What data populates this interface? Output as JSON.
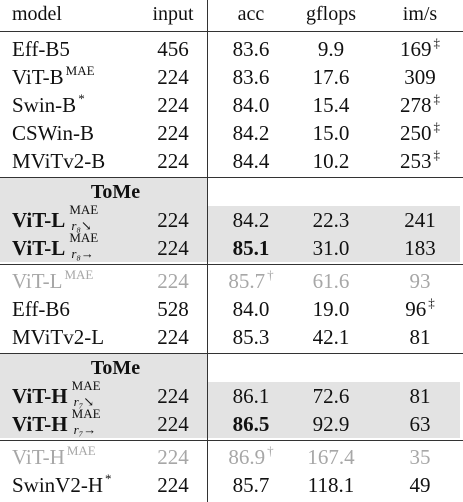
{
  "headers": {
    "model": "model",
    "input": "input",
    "acc": "acc",
    "gflops": "gflops",
    "ims": "im/s"
  },
  "section_label": "ToMe",
  "group1": [
    {
      "model": "Eff-B5",
      "input": "456",
      "acc": "83.6",
      "gflops": "9.9",
      "ims": "169",
      "ims_sup": "‡"
    },
    {
      "model": "ViT-B",
      "model_sup": "MAE",
      "input": "224",
      "acc": "83.6",
      "gflops": "17.6",
      "ims": "309"
    },
    {
      "model": "Swin-B",
      "model_sup": "*",
      "input": "224",
      "acc": "84.0",
      "gflops": "15.4",
      "ims": "278",
      "ims_sup": "‡"
    },
    {
      "model": "CSWin-B",
      "input": "224",
      "acc": "84.2",
      "gflops": "15.0",
      "ims": "250",
      "ims_sup": "‡"
    },
    {
      "model": "MViTv2-B",
      "input": "224",
      "acc": "84.4",
      "gflops": "10.2",
      "ims": "253",
      "ims_sup": "‡"
    }
  ],
  "tome1": [
    {
      "model": "ViT-L",
      "sup_top": "MAE",
      "sup_bot": "r₈↘",
      "input": "224",
      "acc": "84.2",
      "gflops": "22.3",
      "ims": "241"
    },
    {
      "model": "ViT-L",
      "sup_top": "MAE",
      "sup_bot": "r₈→",
      "input": "224",
      "acc": "85.1",
      "gflops": "31.0",
      "ims": "183"
    }
  ],
  "group2": [
    {
      "model": "ViT-L",
      "model_sup": "MAE",
      "input": "224",
      "acc": "85.7",
      "acc_sup": "†",
      "gflops": "61.6",
      "ims": "93"
    },
    {
      "model": "Eff-B6",
      "input": "528",
      "acc": "84.0",
      "gflops": "19.0",
      "ims": "96",
      "ims_sup": "‡"
    },
    {
      "model": "MViTv2-L",
      "input": "224",
      "acc": "85.3",
      "gflops": "42.1",
      "ims": "81"
    }
  ],
  "tome2": [
    {
      "model": "ViT-H",
      "sup_top": "MAE",
      "sup_bot": "r₇↘",
      "input": "224",
      "acc": "86.1",
      "gflops": "72.6",
      "ims": "81"
    },
    {
      "model": "ViT-H",
      "sup_top": "MAE",
      "sup_bot": "r₇→",
      "input": "224",
      "acc": "86.5",
      "gflops": "92.9",
      "ims": "63"
    }
  ],
  "group3": [
    {
      "model": "ViT-H",
      "model_sup": "MAE",
      "input": "224",
      "acc": "86.9",
      "acc_sup": "†",
      "gflops": "167.4",
      "ims": "35"
    },
    {
      "model": "SwinV2-H",
      "model_sup": "*",
      "input": "224",
      "acc": "85.7",
      "gflops": "118.1",
      "ims": "49"
    }
  ]
}
